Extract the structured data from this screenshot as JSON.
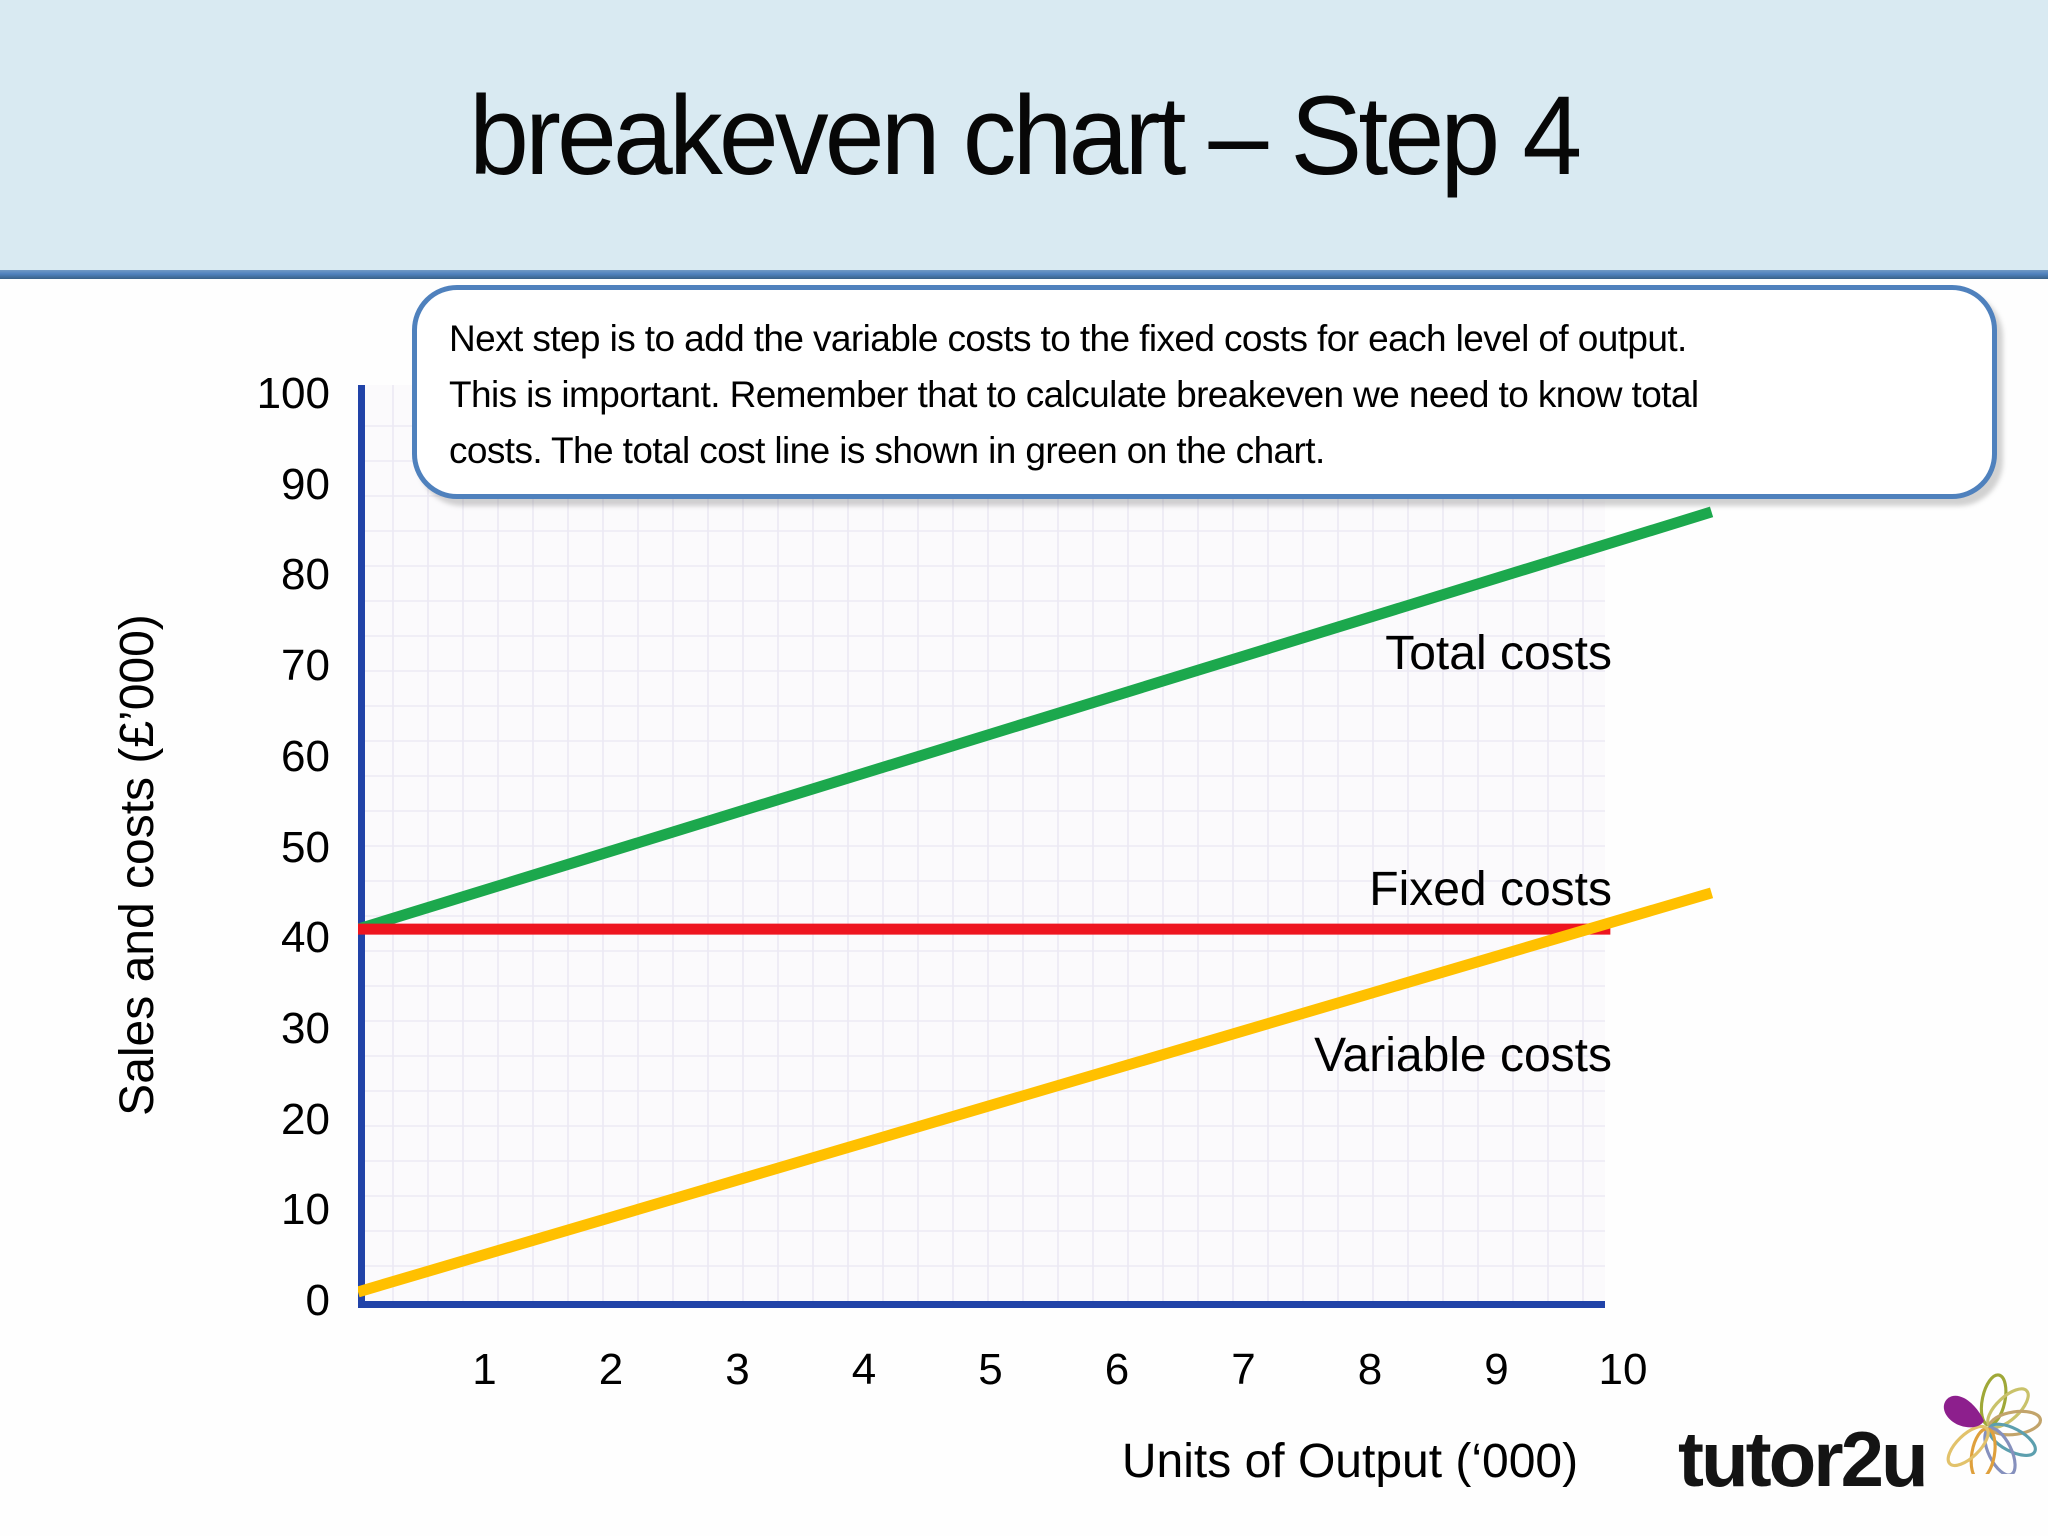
{
  "slide": {
    "title": "breakeven chart – Step 4",
    "callout": {
      "lines": [
        "Next step is to add the variable costs to the fixed costs for each level of output.",
        "This is important. Remember that to calculate breakeven we need to know total",
        "costs.  The total cost line is shown in green on the chart."
      ]
    },
    "logo": {
      "text": "tutor2u",
      "flower_icon": "flower-petals-icon",
      "petal_colors": [
        "#9fa838",
        "#c9c26a",
        "#c2a46b",
        "#5c9fae",
        "#8590bd",
        "#dfa03c",
        "#e2c26b"
      ],
      "solid_petal_color": "#8d1f8d"
    }
  },
  "chart_data": {
    "type": "line",
    "title": "",
    "xlabel": "Units of Output (‘000)",
    "ylabel": "Sales and costs (£’000)",
    "x_ticks": [
      1,
      2,
      3,
      4,
      5,
      6,
      7,
      8,
      9,
      10
    ],
    "y_ticks": [
      0,
      10,
      20,
      30,
      40,
      50,
      60,
      70,
      80,
      90,
      100
    ],
    "xlim": [
      0,
      11
    ],
    "ylim": [
      0,
      100
    ],
    "grid": true,
    "legend_position": "inline labels beside lines",
    "axis_color": "#2143a8",
    "grid_color": "#ece9f3",
    "plot_bg": "#fbfafc",
    "series": [
      {
        "name": "Total costs",
        "color": "#1ca84d",
        "points": [
          [
            0,
            41
          ],
          [
            10.7,
            87
          ]
        ]
      },
      {
        "name": "Fixed costs",
        "color": "#ee151f",
        "points": [
          [
            0,
            41
          ],
          [
            9.9,
            41
          ]
        ]
      },
      {
        "name": "Variable costs",
        "color": "#ffc000",
        "points": [
          [
            0,
            1
          ],
          [
            10.7,
            45
          ]
        ]
      }
    ]
  }
}
